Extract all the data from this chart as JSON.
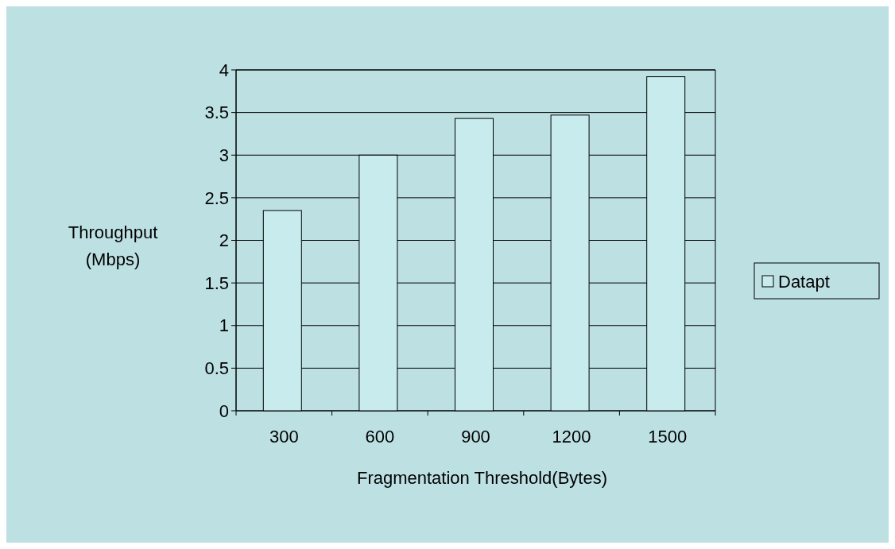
{
  "chart_data": {
    "type": "bar",
    "categories": [
      "300",
      "600",
      "900",
      "1200",
      "1500"
    ],
    "series": [
      {
        "name": "Datapt",
        "color": "#c8ecee",
        "values": [
          2.35,
          3.0,
          3.43,
          3.47,
          3.92
        ]
      }
    ],
    "xlabel": "Fragmentation Threshold(Bytes)",
    "ylabel": "Throughput\n(Mbps)",
    "ylim": [
      0,
      4
    ],
    "yticks": [
      0,
      0.5,
      1,
      1.5,
      2,
      2.5,
      3,
      3.5,
      4
    ],
    "grid": "y",
    "legend": "right"
  }
}
